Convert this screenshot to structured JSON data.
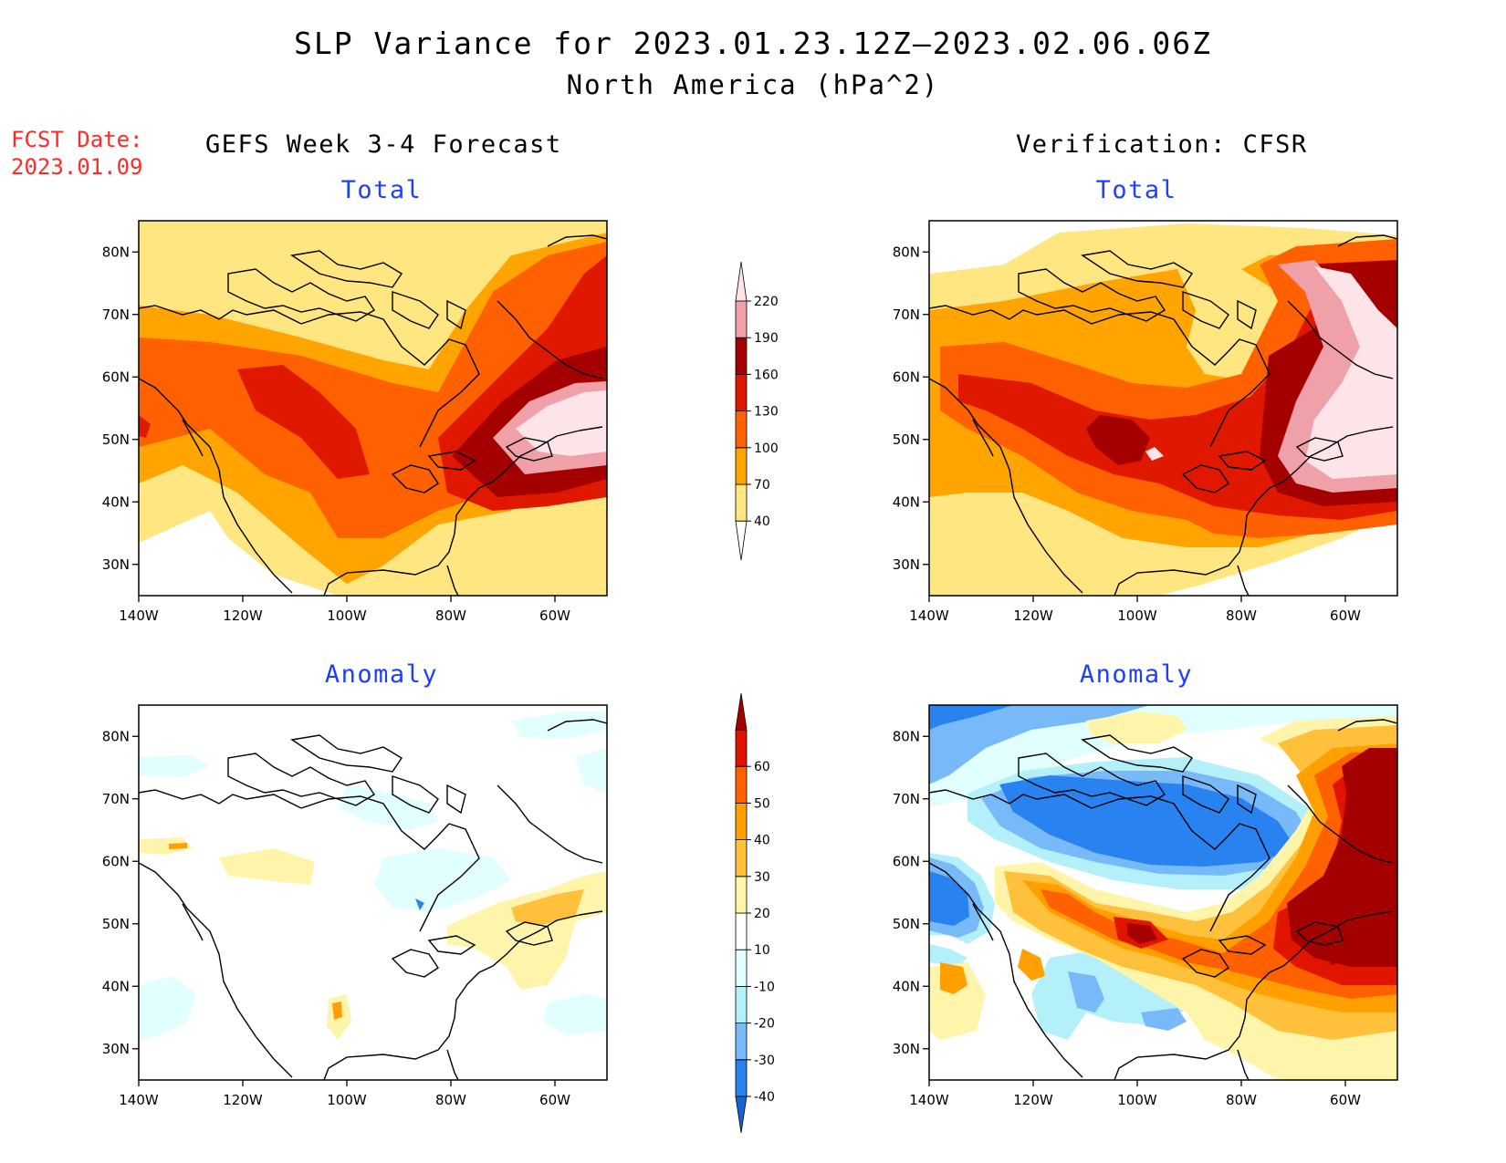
{
  "title": "SLP Variance for 2023.01.23.12Z—2023.02.06.06Z",
  "subtitle": "North America (hPa^2)",
  "fcst_date": {
    "label": "FCST Date:",
    "value": "2023.01.09"
  },
  "columns": {
    "forecast": "GEFS Week 3-4 Forecast",
    "verification": "Verification: CFSR"
  },
  "panel_titles": {
    "total": "Total",
    "anomaly": "Anomaly"
  },
  "map": {
    "lon_ticks": [
      "140W",
      "120W",
      "100W",
      "80W",
      "60W"
    ],
    "lat_ticks": [
      "80N",
      "70N",
      "60N",
      "50N",
      "40N",
      "30N"
    ],
    "lon_range": [
      -140,
      -50
    ],
    "lat_range": [
      25,
      85
    ]
  },
  "colorbar_total": {
    "levels": [
      "40",
      "70",
      "100",
      "130",
      "160",
      "190",
      "220"
    ],
    "colors": [
      "#ffffff",
      "#ffe680",
      "#ffa400",
      "#ff6000",
      "#e11800",
      "#a50000",
      "#f0a0a8",
      "#fde4e8"
    ]
  },
  "colorbar_anomaly": {
    "levels": [
      "-40",
      "-30",
      "-20",
      "-10",
      "10",
      "20",
      "30",
      "40",
      "50",
      "60"
    ],
    "colors": [
      "#1464d2",
      "#2882f0",
      "#78b9fa",
      "#b4f0fa",
      "#e1ffff",
      "#ffffff",
      "#fff5aa",
      "#ffc03c",
      "#ffa000",
      "#ff6000",
      "#e11400",
      "#a50000"
    ]
  }
}
